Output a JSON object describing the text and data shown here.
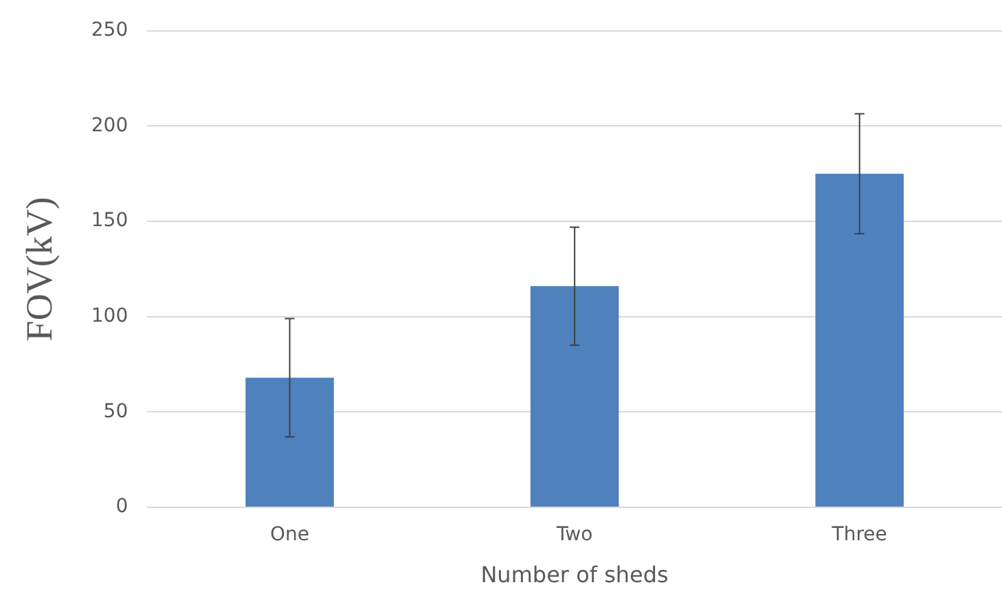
{
  "chart_data": {
    "type": "bar",
    "xlabel": "Number of sheds",
    "ylabel": "FOV(kV)",
    "categories": [
      "One",
      "Two",
      "Three"
    ],
    "values": [
      68,
      116,
      175
    ],
    "errors": [
      31,
      31,
      31.5
    ],
    "color": "#4f81bd",
    "ylim": [
      0,
      250
    ],
    "yticks": [
      0,
      50,
      100,
      150,
      200,
      250
    ],
    "grid": "y",
    "legend": false
  }
}
